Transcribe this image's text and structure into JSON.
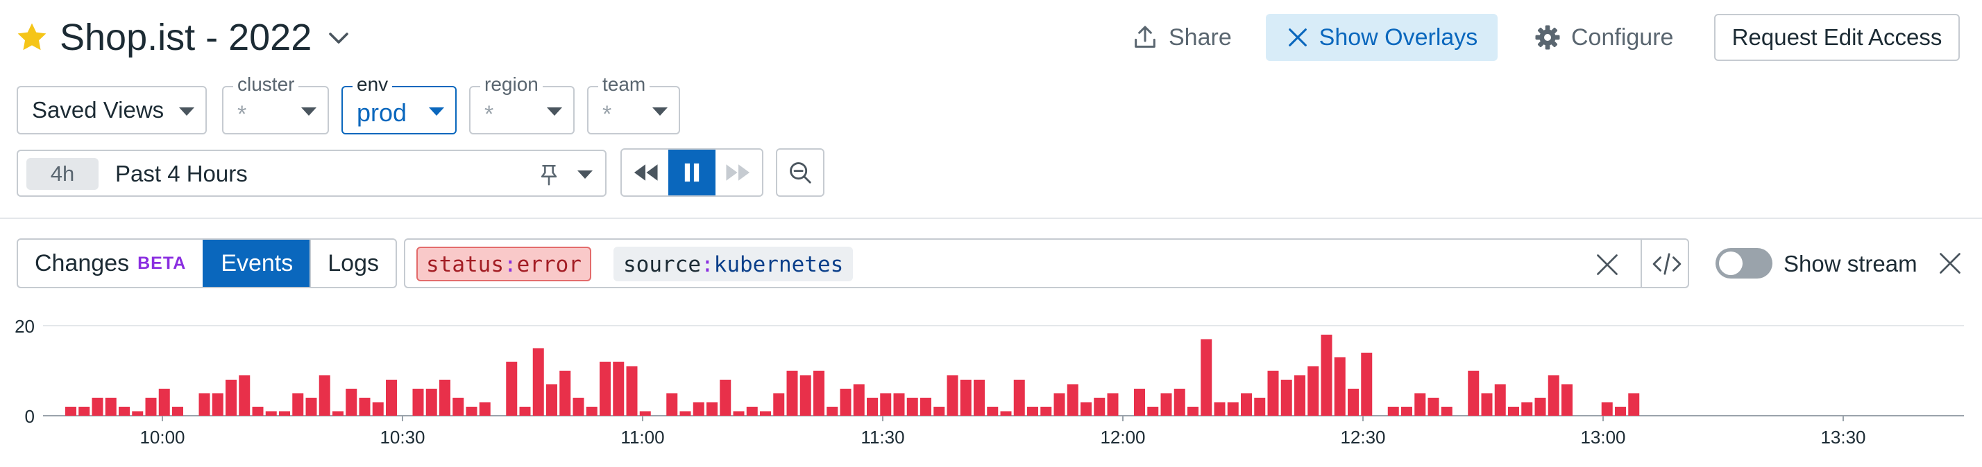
{
  "header": {
    "title": "Shop.ist - 2022",
    "share_label": "Share",
    "overlays_label": "Show Overlays",
    "configure_label": "Configure",
    "request_label": "Request Edit Access"
  },
  "template_vars": {
    "saved_views": "Saved Views",
    "cluster": {
      "label": "cluster",
      "value": "*"
    },
    "env": {
      "label": "env",
      "value": "prod"
    },
    "region": {
      "label": "region",
      "value": "*"
    },
    "team": {
      "label": "team",
      "value": "*"
    }
  },
  "time": {
    "badge": "4h",
    "label": "Past 4 Hours"
  },
  "events_bar": {
    "tabs": {
      "changes": "Changes",
      "beta": "BETA",
      "events": "Events",
      "logs": "Logs"
    },
    "query": [
      {
        "key": "status",
        "sep": ":",
        "value": "error"
      },
      {
        "key": "source",
        "sep": ":",
        "value": "kubernetes"
      }
    ],
    "show_stream_label": "Show stream"
  },
  "colors": {
    "accent": "#0a67bd",
    "bar": "#e8304a",
    "star": "#f5c518"
  },
  "chart_data": {
    "type": "bar",
    "y_ticks": [
      "0",
      "20"
    ],
    "ylim": [
      0,
      20
    ],
    "x_ticks": [
      "10:00",
      "10:30",
      "11:00",
      "11:30",
      "12:00",
      "12:30",
      "13:00",
      "13:30"
    ],
    "values": [
      2,
      2,
      4,
      4,
      2,
      1,
      4,
      6,
      2,
      0,
      5,
      5,
      8,
      9,
      2,
      1,
      1,
      5,
      4,
      9,
      1,
      6,
      4,
      3,
      8,
      0,
      6,
      6,
      8,
      4,
      2,
      3,
      0,
      12,
      2,
      15,
      7,
      10,
      4,
      2,
      12,
      12,
      11,
      1,
      0,
      5,
      1,
      3,
      3,
      8,
      1,
      2,
      1,
      5,
      10,
      9,
      10,
      2,
      6,
      7,
      4,
      5,
      5,
      4,
      4,
      2,
      9,
      8,
      8,
      2,
      1,
      8,
      2,
      2,
      5,
      7,
      3,
      4,
      5,
      0,
      6,
      2,
      5,
      6,
      2,
      17,
      3,
      3,
      5,
      4,
      10,
      8,
      9,
      11,
      18,
      13,
      6,
      14,
      0,
      2,
      2,
      5,
      4,
      2,
      0,
      10,
      5,
      7,
      2,
      3,
      4,
      9,
      7,
      0,
      0,
      3,
      2,
      5
    ]
  }
}
